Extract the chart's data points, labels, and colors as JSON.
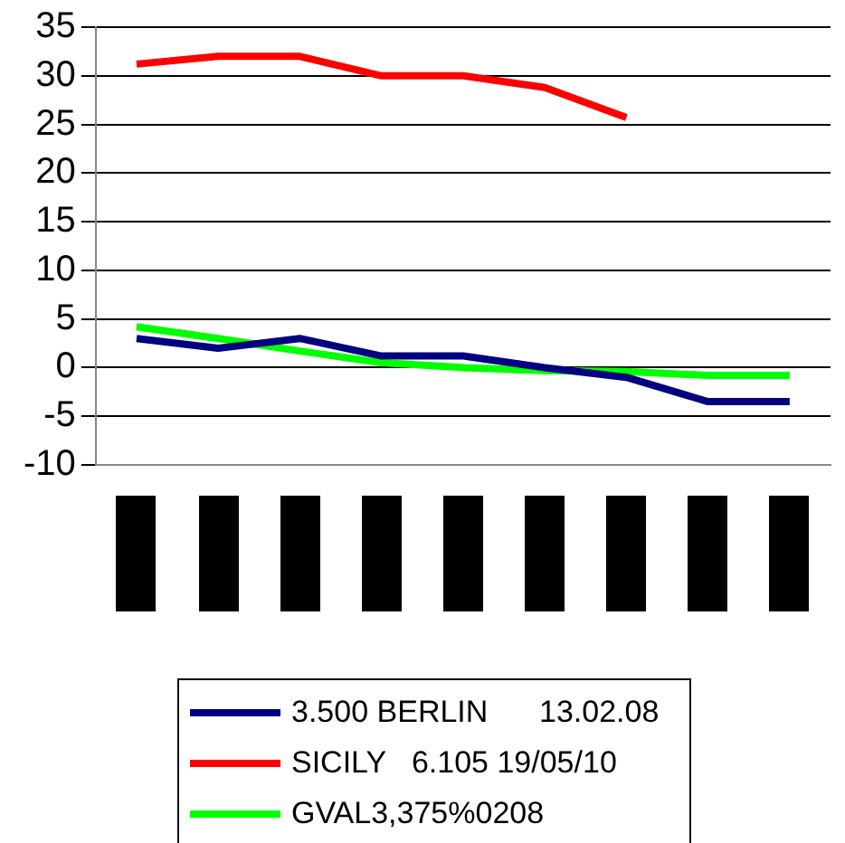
{
  "chart_data": {
    "type": "line",
    "categories": [
      null,
      null,
      null,
      null,
      null,
      null,
      null,
      null,
      null
    ],
    "series": [
      {
        "name": "3.500 BERLIN      13.02.08",
        "color": "#000080",
        "values": [
          3,
          2,
          3,
          1.2,
          1.2,
          0,
          -1,
          -3.5,
          -3.5
        ]
      },
      {
        "name": "SICILY   6.105 19/05/10",
        "color": "#ff0000",
        "values": [
          31.2,
          32,
          32,
          30,
          30,
          28.8,
          25.7,
          null,
          null
        ]
      },
      {
        "name": "GVAL3,375%0208",
        "color": "#00ff00",
        "values": [
          4.2,
          3,
          1.7,
          0.5,
          0,
          -0.3,
          -0.4,
          -0.8,
          -0.8
        ]
      }
    ],
    "ylim": [
      -10,
      35
    ],
    "yticks": [
      -10,
      -5,
      0,
      5,
      10,
      15,
      20,
      25,
      30,
      35
    ],
    "grid": "y",
    "legend": "bottom",
    "marker": "none",
    "line_style": "solid"
  }
}
